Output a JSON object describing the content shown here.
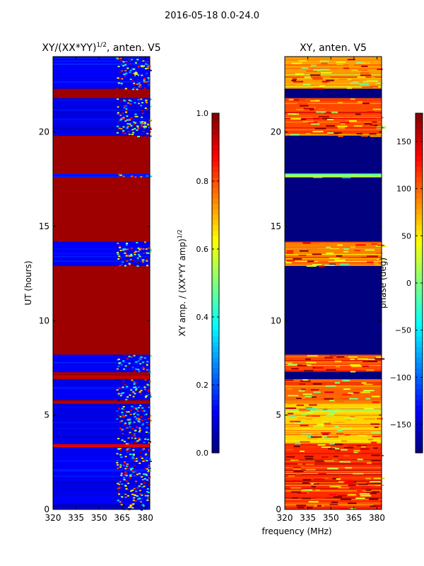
{
  "figure": {
    "suptitle": "2016-05-18 0.0-24.0",
    "xlabel": "frequency (MHz)"
  },
  "chart_data": [
    {
      "type": "heatmap",
      "title": "XY/(XX*YY)",
      "title_exponent": "1/2",
      "title_suffix": ", anten. V5",
      "ylabel": "UT (hours)",
      "xticks": [
        "320",
        "335",
        "350",
        "365",
        "380"
      ],
      "xtick_values": [
        320,
        335,
        350,
        365,
        380
      ],
      "xlim": [
        320,
        383
      ],
      "yticks": [
        "0",
        "5",
        "10",
        "15",
        "20"
      ],
      "ytick_values": [
        0,
        5,
        10,
        15,
        20
      ],
      "ylim": [
        0,
        24
      ],
      "colorbar": {
        "label": "XY amp. / (XX*YY amp)",
        "label_exponent": "1/2",
        "range": [
          0.0,
          1.0
        ],
        "ticks": [
          "0.0",
          "0.2",
          "0.4",
          "0.6",
          "0.8",
          "1.0"
        ],
        "tick_values": [
          0.0,
          0.2,
          0.4,
          0.6,
          0.8,
          1.0
        ],
        "colormap": "jet"
      },
      "background_value": 0.97,
      "bands": [
        {
          "y": [
            0.0,
            0.3
          ],
          "value": 0.08
        },
        {
          "y": [
            0.3,
            0.9
          ],
          "value": 0.12
        },
        {
          "y": [
            0.9,
            1.5
          ],
          "value": 0.1
        },
        {
          "y": [
            1.5,
            3.3
          ],
          "value": 0.12
        },
        {
          "y": [
            3.3,
            3.5
          ],
          "value": 0.9
        },
        {
          "y": [
            3.5,
            5.6
          ],
          "value": 0.1
        },
        {
          "y": [
            5.6,
            5.8
          ],
          "value": 0.95
        },
        {
          "y": [
            5.8,
            6.9
          ],
          "value": 0.12
        },
        {
          "y": [
            6.9,
            7.3
          ],
          "value": 0.95
        },
        {
          "y": [
            7.3,
            8.2
          ],
          "value": 0.12
        },
        {
          "y": [
            12.9,
            14.2
          ],
          "value": 0.12
        },
        {
          "y": [
            17.6,
            17.8
          ],
          "value": 0.15
        },
        {
          "y": [
            19.8,
            21.8
          ],
          "value": 0.1
        },
        {
          "y": [
            22.3,
            24.0
          ],
          "value": 0.12
        }
      ],
      "active_x": [
        361,
        383
      ]
    },
    {
      "type": "heatmap",
      "title": "XY, anten. V5",
      "ylabel": "",
      "xticks": [
        "320",
        "335",
        "350",
        "365",
        "380"
      ],
      "xtick_values": [
        320,
        335,
        350,
        365,
        380
      ],
      "xlim": [
        320,
        383
      ],
      "yticks": [
        "0",
        "5",
        "10",
        "15",
        "20"
      ],
      "ytick_values": [
        0,
        5,
        10,
        15,
        20
      ],
      "ylim": [
        0,
        24
      ],
      "colorbar": {
        "label": "phase (deg)",
        "range": [
          -180,
          180
        ],
        "ticks": [
          "−150",
          "−100",
          "−50",
          "0",
          "50",
          "100",
          "150"
        ],
        "tick_values": [
          -150,
          -100,
          -50,
          0,
          50,
          100,
          150
        ],
        "colormap": "jet"
      },
      "background_value": -180,
      "bands": [
        {
          "y": [
            0.0,
            3.5
          ],
          "value": 120
        },
        {
          "y": [
            3.5,
            5.6
          ],
          "value": 60
        },
        {
          "y": [
            5.6,
            5.8
          ],
          "value": 90
        },
        {
          "y": [
            5.8,
            6.9
          ],
          "value": 100
        },
        {
          "y": [
            7.3,
            8.2
          ],
          "value": 110
        },
        {
          "y": [
            12.9,
            14.2
          ],
          "value": 90
        },
        {
          "y": [
            17.6,
            17.8
          ],
          "value": 20
        },
        {
          "y": [
            19.8,
            21.8
          ],
          "value": 110
        },
        {
          "y": [
            22.3,
            24.0
          ],
          "value": 80
        }
      ]
    }
  ]
}
